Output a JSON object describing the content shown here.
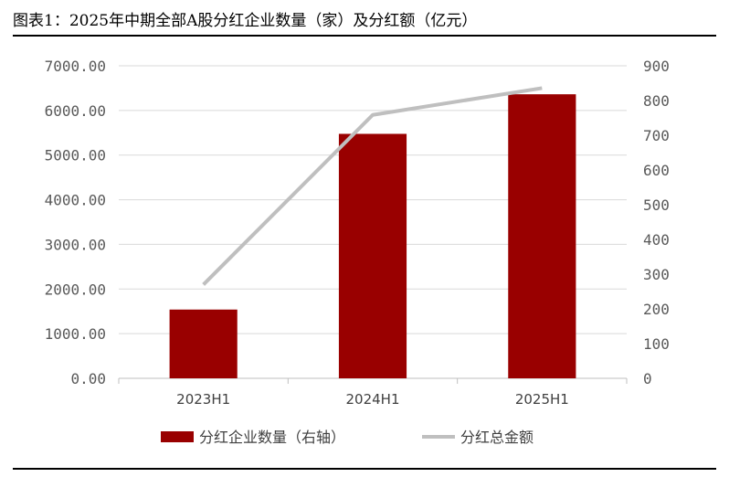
{
  "figure": {
    "title": "图表1：2025年中期全部A股分红企业数量（家）及分红额（亿元）"
  },
  "chart_data": {
    "type": "bar",
    "categories": [
      "2023H1",
      "2024H1",
      "2025H1"
    ],
    "series": [
      {
        "name": "分红企业数量（右轴）",
        "type": "bar",
        "axis": "right",
        "color": "#990000",
        "values": [
          198,
          704,
          818
        ]
      },
      {
        "name": "分红总金额",
        "type": "line",
        "axis": "left",
        "color": "#bfbfbf",
        "values": [
          2100,
          5900,
          6500
        ]
      }
    ],
    "y_left": {
      "ylim": [
        0,
        7000
      ],
      "ticks": [
        "0.00",
        "1000.00",
        "2000.00",
        "3000.00",
        "4000.00",
        "5000.00",
        "6000.00",
        "7000.00"
      ]
    },
    "y_right": {
      "ylim": [
        0,
        900
      ],
      "ticks": [
        "0",
        "100",
        "200",
        "300",
        "400",
        "500",
        "600",
        "700",
        "800",
        "900"
      ]
    },
    "grid": true,
    "legend": "bottom"
  }
}
